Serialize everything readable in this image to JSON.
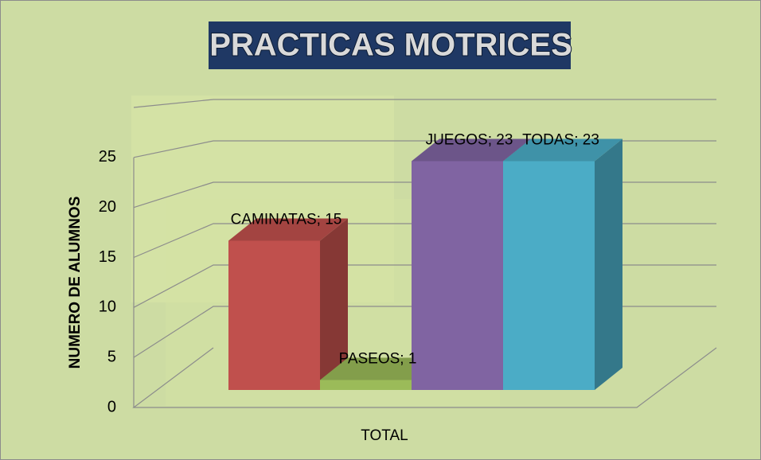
{
  "chart_data": {
    "type": "bar3d",
    "title": "PRACTICAS MOTRICES",
    "y_axis_label": "NUMERO DE ALUMNOS",
    "categories": [
      "TOTAL"
    ],
    "series": [
      {
        "name": "CAMINATAS",
        "color": "#c0504d",
        "values": [
          15
        ],
        "value_labels": [
          "CAMINATAS; 15"
        ]
      },
      {
        "name": "PASEOS",
        "color": "#9bbb59",
        "values": [
          1
        ],
        "value_labels": [
          "PASEOS; 1"
        ]
      },
      {
        "name": "JUEGOS",
        "color": "#8064a2",
        "values": [
          23
        ],
        "value_labels": [
          "JUEGOS; 23"
        ]
      },
      {
        "name": "TODAS",
        "color": "#4bacc6",
        "values": [
          23
        ],
        "value_labels": [
          "TODAS; 23"
        ]
      }
    ],
    "ylim": [
      0,
      30
    ],
    "yticks": [
      0,
      5,
      10,
      15,
      20,
      25
    ],
    "grid": true
  }
}
